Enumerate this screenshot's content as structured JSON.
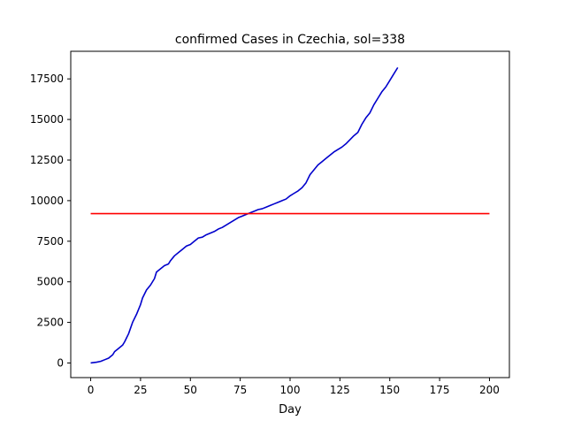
{
  "chart_data": {
    "type": "line",
    "title": "confirmed Cases in Czechia, sol=338",
    "xlabel": "Day",
    "ylabel": "",
    "xlim": [
      -10,
      210
    ],
    "ylim": [
      -900,
      19200
    ],
    "grid": false,
    "xticks": [
      0,
      25,
      50,
      75,
      100,
      125,
      150,
      175,
      200
    ],
    "yticks": [
      0,
      2500,
      5000,
      7500,
      10000,
      12500,
      15000,
      17500
    ],
    "series": [
      {
        "color": "#0000cc",
        "x": [
          0,
          3,
          5,
          7,
          9,
          10,
          11,
          12,
          14,
          16,
          17,
          19,
          21,
          23,
          25,
          26,
          28,
          30,
          32,
          33,
          35,
          37,
          39,
          40,
          42,
          44,
          46,
          48,
          50,
          52,
          54,
          56,
          58,
          60,
          62,
          64,
          66,
          68,
          70,
          72,
          74,
          76,
          78,
          80,
          82,
          84,
          86,
          88,
          90,
          92,
          94,
          96,
          98,
          100,
          102,
          104,
          106,
          108,
          110,
          112,
          114,
          116,
          118,
          120,
          122,
          124,
          126,
          128,
          130,
          132,
          134,
          136,
          138,
          140,
          142,
          144,
          146,
          148,
          150,
          152,
          154
        ],
        "y": [
          0,
          50,
          100,
          200,
          300,
          400,
          500,
          700,
          900,
          1100,
          1300,
          1800,
          2500,
          3000,
          3600,
          4000,
          4500,
          4800,
          5200,
          5600,
          5800,
          6000,
          6100,
          6300,
          6600,
          6800,
          7000,
          7200,
          7300,
          7500,
          7700,
          7750,
          7900,
          8000,
          8100,
          8250,
          8350,
          8500,
          8650,
          8800,
          8950,
          9050,
          9150,
          9250,
          9350,
          9450,
          9500,
          9600,
          9700,
          9800,
          9900,
          10000,
          10100,
          10300,
          10450,
          10600,
          10800,
          11100,
          11600,
          11900,
          12200,
          12400,
          12600,
          12800,
          13000,
          13150,
          13300,
          13500,
          13750,
          14000,
          14200,
          14700,
          15100,
          15400,
          15900,
          16300,
          16700,
          17000,
          17400,
          17800,
          18200
        ]
      },
      {
        "color": "#ff0000",
        "x": [
          0,
          200
        ],
        "y": [
          9200,
          9200
        ]
      }
    ]
  }
}
